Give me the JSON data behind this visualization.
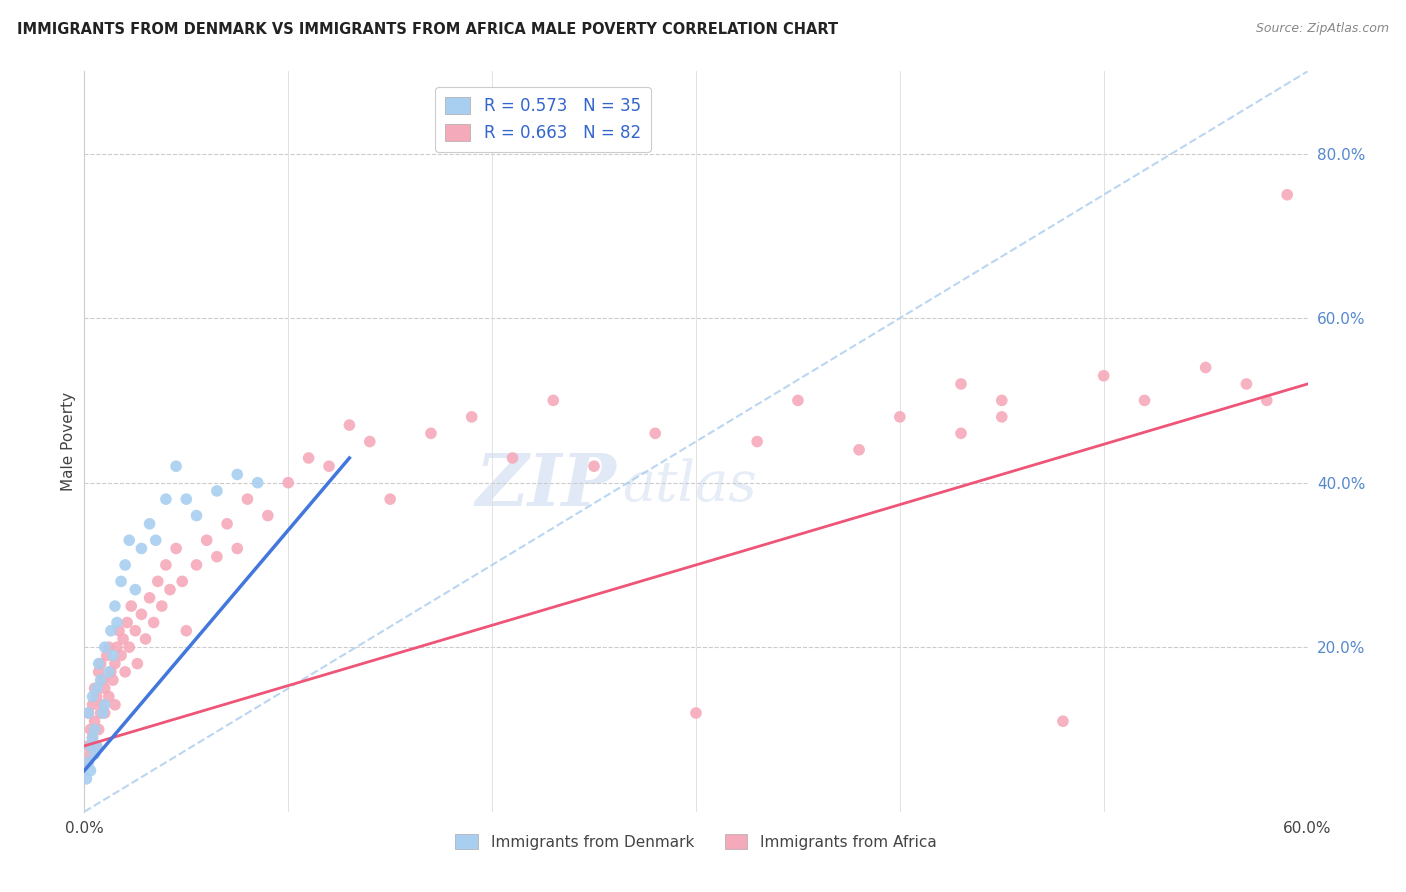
{
  "title": "IMMIGRANTS FROM DENMARK VS IMMIGRANTS FROM AFRICA MALE POVERTY CORRELATION CHART",
  "source": "Source: ZipAtlas.com",
  "ylabel": "Male Poverty",
  "xlim": [
    0.0,
    0.6
  ],
  "ylim": [
    0.0,
    0.9
  ],
  "xtick_positions": [
    0.0,
    0.1,
    0.2,
    0.3,
    0.4,
    0.5,
    0.6
  ],
  "xticklabels": [
    "0.0%",
    "",
    "",
    "",
    "",
    "",
    "60.0%"
  ],
  "ytick_positions": [
    0.0,
    0.2,
    0.4,
    0.6,
    0.8
  ],
  "yticklabels": [
    "",
    "20.0%",
    "40.0%",
    "60.0%",
    "80.0%"
  ],
  "legend_denmark": "R = 0.573   N = 35",
  "legend_africa": "R = 0.663   N = 82",
  "denmark_color": "#A8CFF0",
  "africa_color": "#F5AABB",
  "denmark_line_color": "#4477DD",
  "africa_line_color": "#EE5577",
  "dashed_line_color": "#AACCEE",
  "watermark_zip": "ZIP",
  "watermark_atlas": "atlas",
  "denmark_scatter_x": [
    0.001,
    0.002,
    0.002,
    0.003,
    0.003,
    0.004,
    0.004,
    0.005,
    0.005,
    0.006,
    0.006,
    0.007,
    0.008,
    0.009,
    0.01,
    0.01,
    0.012,
    0.013,
    0.014,
    0.015,
    0.016,
    0.018,
    0.02,
    0.022,
    0.025,
    0.028,
    0.032,
    0.035,
    0.04,
    0.045,
    0.05,
    0.055,
    0.065,
    0.075,
    0.085
  ],
  "denmark_scatter_y": [
    0.04,
    0.06,
    0.12,
    0.08,
    0.05,
    0.09,
    0.14,
    0.1,
    0.07,
    0.08,
    0.15,
    0.18,
    0.16,
    0.12,
    0.13,
    0.2,
    0.17,
    0.22,
    0.19,
    0.25,
    0.23,
    0.28,
    0.3,
    0.33,
    0.27,
    0.32,
    0.35,
    0.33,
    0.38,
    0.42,
    0.38,
    0.36,
    0.39,
    0.41,
    0.4
  ],
  "africa_scatter_x": [
    0.001,
    0.002,
    0.002,
    0.003,
    0.003,
    0.004,
    0.004,
    0.005,
    0.005,
    0.006,
    0.006,
    0.007,
    0.007,
    0.008,
    0.008,
    0.009,
    0.009,
    0.01,
    0.01,
    0.011,
    0.012,
    0.012,
    0.013,
    0.014,
    0.015,
    0.015,
    0.016,
    0.017,
    0.018,
    0.019,
    0.02,
    0.021,
    0.022,
    0.023,
    0.025,
    0.026,
    0.028,
    0.03,
    0.032,
    0.034,
    0.036,
    0.038,
    0.04,
    0.042,
    0.045,
    0.048,
    0.05,
    0.055,
    0.06,
    0.065,
    0.07,
    0.075,
    0.08,
    0.09,
    0.1,
    0.11,
    0.12,
    0.13,
    0.14,
    0.15,
    0.17,
    0.19,
    0.21,
    0.23,
    0.25,
    0.28,
    0.3,
    0.33,
    0.35,
    0.38,
    0.4,
    0.43,
    0.45,
    0.48,
    0.5,
    0.52,
    0.55,
    0.57,
    0.58,
    0.59,
    0.43,
    0.45
  ],
  "africa_scatter_y": [
    0.06,
    0.08,
    0.12,
    0.1,
    0.07,
    0.09,
    0.13,
    0.11,
    0.15,
    0.08,
    0.14,
    0.1,
    0.17,
    0.12,
    0.18,
    0.13,
    0.16,
    0.15,
    0.12,
    0.19,
    0.14,
    0.2,
    0.17,
    0.16,
    0.18,
    0.13,
    0.2,
    0.22,
    0.19,
    0.21,
    0.17,
    0.23,
    0.2,
    0.25,
    0.22,
    0.18,
    0.24,
    0.21,
    0.26,
    0.23,
    0.28,
    0.25,
    0.3,
    0.27,
    0.32,
    0.28,
    0.22,
    0.3,
    0.33,
    0.31,
    0.35,
    0.32,
    0.38,
    0.36,
    0.4,
    0.43,
    0.42,
    0.47,
    0.45,
    0.38,
    0.46,
    0.48,
    0.43,
    0.5,
    0.42,
    0.46,
    0.12,
    0.45,
    0.5,
    0.44,
    0.48,
    0.52,
    0.5,
    0.11,
    0.53,
    0.5,
    0.54,
    0.52,
    0.5,
    0.75,
    0.46,
    0.48
  ],
  "dk_line_x": [
    0.0,
    0.13
  ],
  "dk_line_y": [
    0.05,
    0.43
  ],
  "af_line_x": [
    0.0,
    0.6
  ],
  "af_line_y": [
    0.08,
    0.52
  ],
  "dash_line_x": [
    0.0,
    0.6
  ],
  "dash_line_y": [
    0.0,
    0.9
  ]
}
